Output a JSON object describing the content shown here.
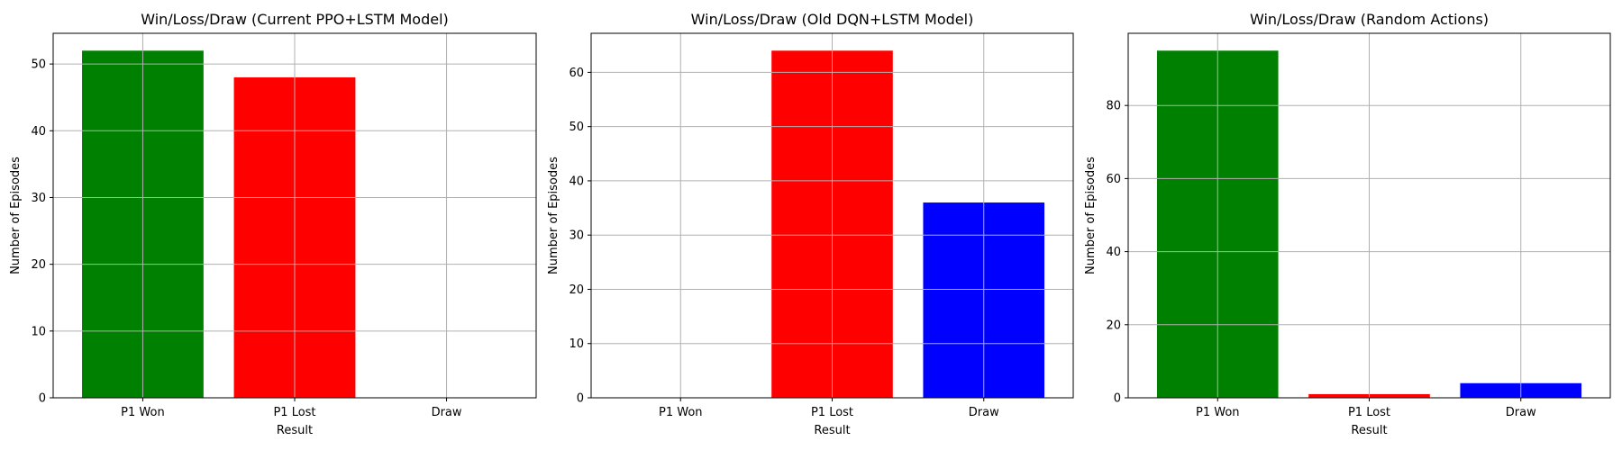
{
  "chart_data": [
    {
      "type": "bar",
      "title": "Win/Loss/Draw (Current PPO+LSTM Model)",
      "xlabel": "Result",
      "ylabel": "Number of Episodes",
      "categories": [
        "P1 Won",
        "P1 Lost",
        "Draw"
      ],
      "values": [
        52,
        48,
        0
      ],
      "colors": [
        "#008000",
        "#ff0000",
        "#0000ff"
      ],
      "ylim": [
        0,
        54.6
      ],
      "yticks": [
        0,
        10,
        20,
        30,
        40,
        50
      ],
      "grid": true
    },
    {
      "type": "bar",
      "title": "Win/Loss/Draw (Old DQN+LSTM Model)",
      "xlabel": "Result",
      "ylabel": "Number of Episodes",
      "categories": [
        "P1 Won",
        "P1 Lost",
        "Draw"
      ],
      "values": [
        0,
        64,
        36
      ],
      "colors": [
        "#008000",
        "#ff0000",
        "#0000ff"
      ],
      "ylim": [
        0,
        67.2
      ],
      "yticks": [
        0,
        10,
        20,
        30,
        40,
        50,
        60
      ],
      "grid": true
    },
    {
      "type": "bar",
      "title": "Win/Loss/Draw (Random Actions)",
      "xlabel": "Result",
      "ylabel": "Number of Episodes",
      "categories": [
        "P1 Won",
        "P1 Lost",
        "Draw"
      ],
      "values": [
        95,
        1,
        4
      ],
      "colors": [
        "#008000",
        "#ff0000",
        "#0000ff"
      ],
      "ylim": [
        0,
        99.75
      ],
      "yticks": [
        0,
        20,
        40,
        60,
        80
      ],
      "grid": true
    }
  ]
}
